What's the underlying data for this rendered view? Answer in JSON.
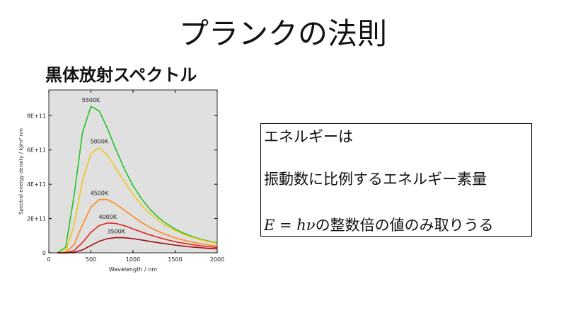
{
  "slide": {
    "title": "プランクの法則",
    "subtitle": "黒体放射スペクトル",
    "box": {
      "line1": "エネルギーは",
      "line2": "振動数に比例するエネルギー素量",
      "math": "E = hν",
      "line3": "の整数倍の値のみ取りうる"
    }
  },
  "chart_data": {
    "type": "line",
    "x_label": "Wavelength / nm",
    "y_label": "Spectral energy density / kJ/m³ nm",
    "x": [
      100,
      200,
      300,
      400,
      500,
      600,
      700,
      800,
      900,
      1000,
      1100,
      1200,
      1300,
      1400,
      1500,
      1600,
      1700,
      1800,
      1900,
      2000
    ],
    "xlim": [
      0,
      2000
    ],
    "xticks": [
      0,
      500,
      1000,
      1500,
      2000
    ],
    "ylim": [
      0,
      950000000000.0
    ],
    "yticks": [
      0,
      {
        "value": 200000000000.0,
        "label": "2E+11"
      },
      {
        "value": 400000000000.0,
        "label": "4E+11"
      },
      {
        "value": 600000000000.0,
        "label": "6E+11"
      },
      {
        "value": 800000000000.0,
        "label": "8E+11"
      }
    ],
    "grid": false,
    "series": [
      {
        "name": "5500K",
        "color": "#22c322",
        "values": [
          0,
          32000000000.0,
          334000000000.0,
          702000000000.0,
          854000000000.0,
          827000000000.0,
          721000000000.0,
          599000000000.0,
          487000000000.0,
          392000000000.0,
          316000000000.0,
          255000000000.0,
          207000000000.0,
          169000000000.0,
          139000000000.0,
          115000000000.0,
          96000000000.0,
          80000000000.0,
          68000000000.0,
          58000000000.0
        ]
      },
      {
        "name": "5000K",
        "color": "#f2c619",
        "values": [
          0,
          10000000000.0,
          161000000000.0,
          420000000000.0,
          581000000000.0,
          613000000000.0,
          567000000000.0,
          491000000000.0,
          413000000000.0,
          340000000000.0,
          279000000000.0,
          230000000000.0,
          189000000000.0,
          156000000000.0,
          130000000000.0,
          108000000000.0,
          91000000000.0,
          77000000000.0,
          65000000000.0,
          55000000000.0
        ]
      },
      {
        "name": "4500K",
        "color": "#ff8a1c",
        "values": [
          0,
          1800000000.0,
          48000000000.0,
          164000000000.0,
          266000000000.0,
          311000000000.0,
          310000000000.0,
          284000000000.0,
          248000000000.0,
          212000000000.0,
          178000000000.0,
          149000000000.0,
          125000000000.0,
          105000000000.0,
          88000000000.0,
          74000000000.0,
          63000000000.0,
          54000000000.0,
          46000000000.0,
          39000000000.0
        ]
      },
      {
        "name": "4000K",
        "color": "#e3231b",
        "values": [
          0,
          240000000.0,
          13000000000.0,
          60000000000.0,
          120000000000.0,
          160000000000.0,
          174000000000.0,
          171000000000.0,
          158000000000.0,
          140000000000.0,
          122000000000.0,
          105000000000.0,
          90000000000.0,
          77000000000.0,
          65000000000.0,
          56000000000.0,
          48000000000.0,
          41000000000.0,
          36000000000.0,
          31000000000.0
        ]
      },
      {
        "name": "3500K",
        "color": "#9e1010",
        "values": [
          0,
          18000000.0,
          2300000000.0,
          17000000000.0,
          43000000000.0,
          68000000000.0,
          83000000000.0,
          89000000000.0,
          88000000000.0,
          83000000000.0,
          75000000000.0,
          67000000000.0,
          59000000000.0,
          52000000000.0,
          45000000000.0,
          39000000000.0,
          34000000000.0,
          30000000000.0,
          26000000000.0,
          23000000000.0
        ]
      }
    ]
  }
}
